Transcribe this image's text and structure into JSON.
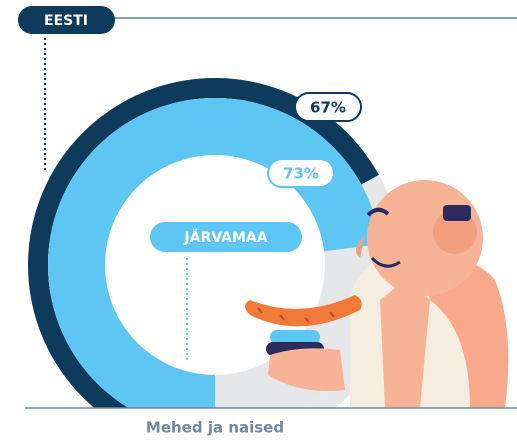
{
  "chart_data": {
    "type": "radial-progress",
    "series": [
      {
        "name": "EESTI",
        "color": "#0e3a5c",
        "values": [
          67
        ],
        "value_labels": [
          "67%"
        ]
      },
      {
        "name": "JÄRVAMAA",
        "color": "#5ec6f2",
        "values": [
          73
        ],
        "value_labels": [
          "73%"
        ]
      }
    ],
    "xlabel": "Mehed ja naised"
  }
}
